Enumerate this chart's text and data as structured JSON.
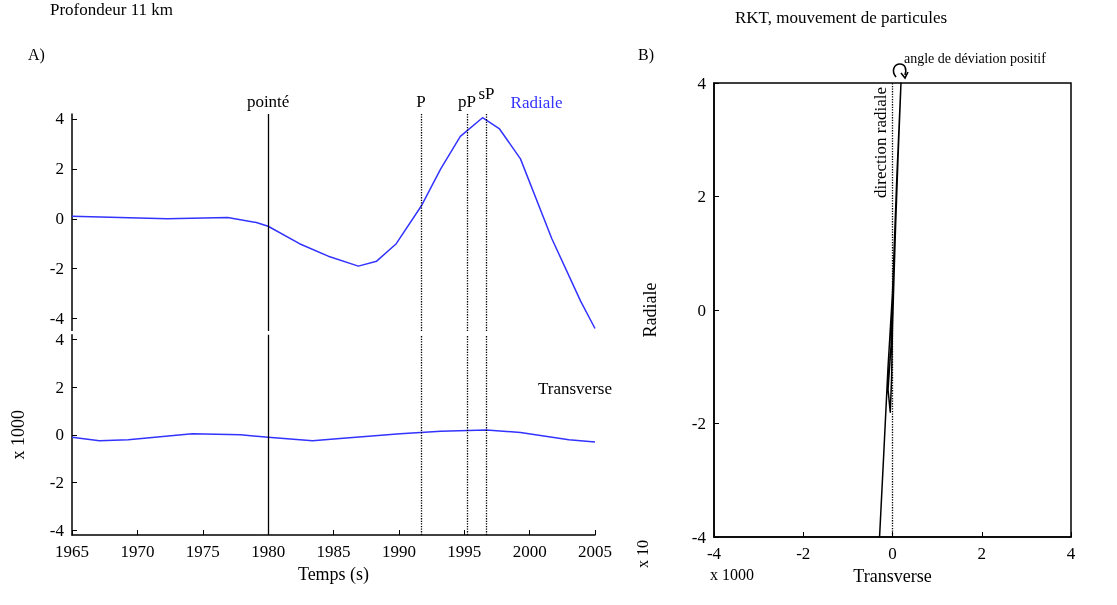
{
  "chart_data": [
    {
      "type": "line",
      "title": "Profondeur 11 km",
      "annotations": [
        "A)"
      ],
      "x": [
        1965,
        1972.3,
        1976.9,
        1979.1,
        1980,
        1982.4,
        1984.6,
        1986.9,
        1988.3,
        1989.8,
        1991.7,
        1993.2,
        1994.7,
        1996.4,
        1997.7,
        1999.3,
        2001.7,
        2003.9,
        2005
      ],
      "series": [
        {
          "name": "Radiale",
          "color": "#3333ff",
          "values": [
            0.1,
            0.0,
            0.05,
            -0.15,
            -0.3,
            -1.0,
            -1.5,
            -1.9,
            -1.7,
            -1.0,
            0.5,
            2.0,
            3.3,
            4.05,
            3.6,
            2.4,
            -0.8,
            -3.3,
            -4.4
          ]
        }
      ],
      "xlim": [
        1965,
        2005
      ],
      "ylim": [
        -4.5,
        4.2
      ],
      "yticks": [
        -4,
        -2,
        0,
        2,
        4
      ],
      "tick_labels": "y",
      "marker": "none",
      "grid": false,
      "legend": false,
      "ref_lines": [
        {
          "axis": "x",
          "value": 1980,
          "label": "pointé",
          "line_style": "solid",
          "color": "#000000"
        },
        {
          "axis": "x",
          "value": 1991.7,
          "label": "P",
          "line_style": "dotted",
          "color": "#000000"
        },
        {
          "axis": "x",
          "value": 1995.2,
          "label": "pP",
          "line_style": "dotted",
          "color": "#000000"
        },
        {
          "axis": "x",
          "value": 1996.7,
          "label": "sP",
          "line_style": "dotted",
          "color": "#000000"
        }
      ]
    },
    {
      "type": "line",
      "xlabel": "Temps (s)",
      "ylabel": "x 1000",
      "x": [
        1965,
        1967.1,
        1969.3,
        1974.2,
        1977.9,
        1980,
        1983.4,
        1985.5,
        1990.1,
        1993.2,
        1996.7,
        1999.3,
        2003,
        2005
      ],
      "series": [
        {
          "name": "Transverse",
          "color": "#3333ff",
          "values": [
            -0.1,
            -0.25,
            -0.2,
            0.05,
            0,
            -0.1,
            -0.25,
            -0.15,
            0.05,
            0.15,
            0.2,
            0.1,
            -0.2,
            -0.3
          ]
        }
      ],
      "xlim": [
        1965,
        2005
      ],
      "xticks": [
        1965,
        1970,
        1975,
        1980,
        1985,
        1990,
        1995,
        2000,
        2005
      ],
      "ylim": [
        -4.2,
        4.2
      ],
      "yticks": [
        -4,
        -2,
        0,
        2,
        4
      ],
      "marker": "none",
      "grid": false,
      "legend": false,
      "ref_lines": [
        {
          "axis": "x",
          "value": 1980,
          "line_style": "solid",
          "color": "#000000"
        },
        {
          "axis": "x",
          "value": 1991.7,
          "line_style": "dotted",
          "color": "#000000"
        },
        {
          "axis": "x",
          "value": 1995.2,
          "line_style": "dotted",
          "color": "#000000"
        },
        {
          "axis": "x",
          "value": 1996.7,
          "line_style": "dotted",
          "color": "#000000"
        }
      ]
    },
    {
      "type": "line",
      "title": "RKT, mouvement de particules",
      "xlabel": "Transverse",
      "ylabel": "Radiale",
      "annotations": [
        "B)",
        {
          "text": "angle de déviation positif",
          "x": 0.19,
          "y": 4
        },
        "x 10",
        "x 1000"
      ],
      "x": [
        0.0,
        -0.03,
        -0.1,
        -0.05,
        -0.02,
        0.0,
        0.03,
        0.07,
        0.12,
        0.19,
        0.1,
        0.0,
        -0.1,
        -0.2,
        -0.29
      ],
      "series": [
        {
          "color": "#000000",
          "values": [
            0.1,
            -0.6,
            -1.4,
            -1.8,
            -1.2,
            -0.3,
            0.5,
            1.5,
            2.6,
            4.0,
            2.4,
            0.3,
            -1.0,
            -2.6,
            -4.0
          ]
        }
      ],
      "xlim": [
        -4,
        4
      ],
      "xticks": [
        -4,
        -2,
        0,
        2,
        4
      ],
      "ylim": [
        -4,
        4
      ],
      "yticks": [
        -4,
        -2,
        0,
        2,
        4
      ],
      "marker": "none",
      "grid": false,
      "legend": false,
      "ref_lines": [
        {
          "axis": "x",
          "value": 0,
          "label": "direction radiale",
          "line_style": "dotted",
          "color": "#000000"
        }
      ]
    }
  ]
}
